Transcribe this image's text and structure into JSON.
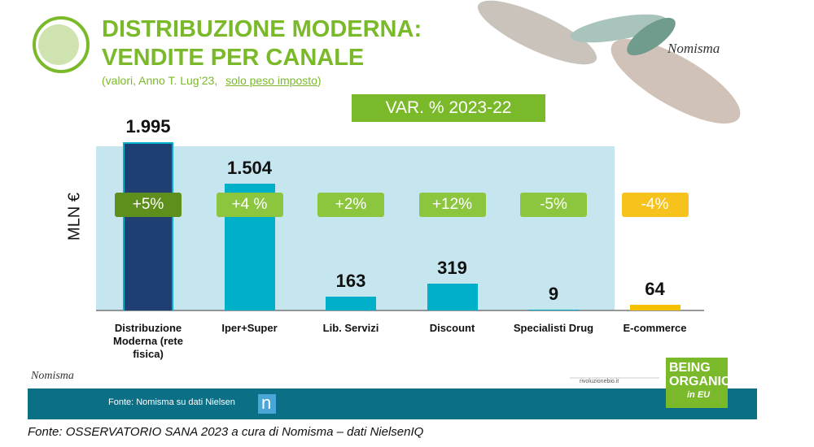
{
  "header": {
    "title_lines": [
      "DISTRIBUZIONE MODERNA:",
      "VENDITE PER CANALE"
    ],
    "subtitle": "(valori, Anno T. Lug’23,",
    "subtitle_link": "solo peso imposto",
    "subtitle_end": ")",
    "brand": "Nomisma"
  },
  "chart_data": {
    "type": "bar",
    "y_label": "MLN €",
    "var_title": "VAR. % 2023-22",
    "categories": [
      "Distribuzione Moderna (rete fisica)",
      "Iper+Super",
      "Lib. Servizi",
      "Discount",
      "Specialisti Drug",
      "E-commerce"
    ],
    "values": [
      1995,
      1504,
      163,
      319,
      9,
      64
    ],
    "value_labels": [
      "1.995",
      "1.504",
      "163",
      "319",
      "9",
      "64"
    ],
    "colors": [
      "#1f3f73",
      "#00b0c8",
      "#00b0c8",
      "#00b0c8",
      "#00b0c8",
      "#f5c000"
    ],
    "var_values": [
      5,
      4,
      2,
      12,
      -5,
      -4
    ],
    "var_labels": [
      "+5%",
      "+4 %",
      "+2%",
      "+12%",
      "-5%",
      "-4%"
    ],
    "var_colors": [
      "#5e8f1c",
      "#8cc63f",
      "#8cc63f",
      "#8cc63f",
      "#8cc63f",
      "#f7c21c"
    ]
  },
  "footer": {
    "source_bar": "Fonte: Nomisma su dati Nielsen",
    "logo_letter": "n",
    "site": "rivoluzionebio.it",
    "badge_lines": [
      "BEING",
      "ORGANIC",
      "in EU"
    ],
    "brand": "Nomisma",
    "source": "Fonte: OSSERVATORIO SANA 2023 a cura di Nomisma – dati NielsenIQ"
  }
}
